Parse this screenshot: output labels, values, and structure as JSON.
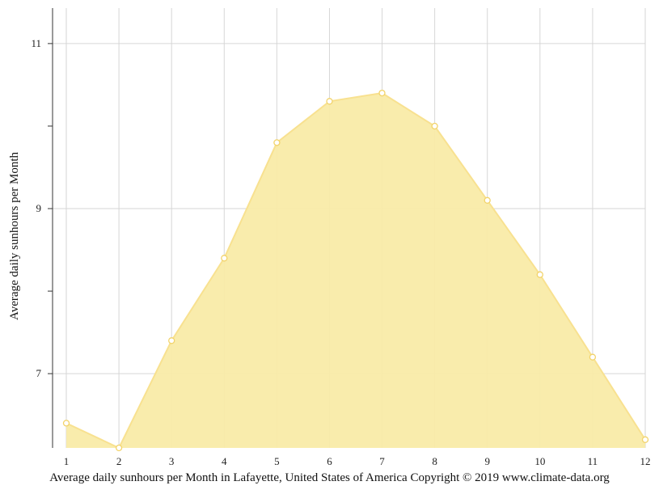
{
  "chart_data": {
    "type": "area",
    "x": [
      1,
      2,
      3,
      4,
      5,
      6,
      7,
      8,
      9,
      10,
      11,
      12
    ],
    "values": [
      6.4,
      6.1,
      7.4,
      8.4,
      9.8,
      10.3,
      10.4,
      10.0,
      9.1,
      8.2,
      7.2,
      6.2
    ],
    "ylabel": "Average daily sunhours per Month",
    "caption": "Average daily sunhours per Month in Lafayette, United States of America Copyright © 2019 www.climate-data.org",
    "xlim": [
      1,
      12
    ],
    "ylim": [
      6.1,
      11.43
    ],
    "y_ticks": [
      7,
      8,
      9,
      10,
      11
    ],
    "y_tick_labels": [
      "7",
      "",
      "9",
      "",
      "11"
    ],
    "x_tick_labels": [
      "1",
      "2",
      "3",
      "4",
      "5",
      "6",
      "7",
      "8",
      "9",
      "10",
      "11",
      "12"
    ],
    "grid": true,
    "colors": {
      "fill": "#f9eba8",
      "line": "#f8e190",
      "marker_fill": "#ffffff",
      "grid": "#d6d6d6"
    }
  }
}
